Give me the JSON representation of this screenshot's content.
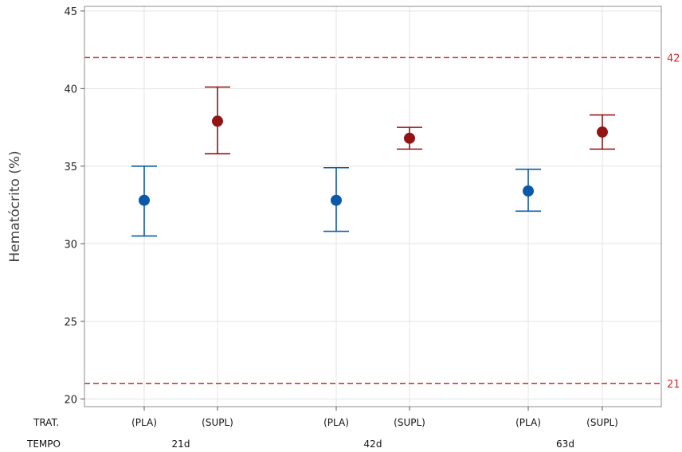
{
  "chart_data": {
    "type": "scatter",
    "subtype": "interval-plot",
    "ylabel": "Hematócrito (%)",
    "ylim": [
      19.5,
      45.3
    ],
    "yticks": [
      20,
      25,
      30,
      35,
      40,
      45
    ],
    "grid": true,
    "row_labels": {
      "trat": "TRAT.",
      "tempo": "TEMPO"
    },
    "groups": [
      {
        "tempo": "21d",
        "items": [
          {
            "trat": "(PLA)",
            "mean": 32.8,
            "lower": 30.5,
            "upper": 35.0,
            "color": "#0a5aa8"
          },
          {
            "trat": "(SUPL)",
            "mean": 37.9,
            "lower": 35.8,
            "upper": 40.1,
            "color": "#931414"
          }
        ]
      },
      {
        "tempo": "42d",
        "items": [
          {
            "trat": "(PLA)",
            "mean": 32.8,
            "lower": 30.8,
            "upper": 34.9,
            "color": "#0a5aa8"
          },
          {
            "trat": "(SUPL)",
            "mean": 36.8,
            "lower": 36.1,
            "upper": 37.5,
            "color": "#931414"
          }
        ]
      },
      {
        "tempo": "63d",
        "items": [
          {
            "trat": "(PLA)",
            "mean": 33.4,
            "lower": 32.1,
            "upper": 34.8,
            "color": "#0a5aa8"
          },
          {
            "trat": "(SUPL)",
            "mean": 37.2,
            "lower": 36.1,
            "upper": 38.3,
            "color": "#931414"
          }
        ]
      }
    ],
    "reference_lines": [
      {
        "value": 42,
        "label": "42",
        "color": "#d62728"
      },
      {
        "value": 21,
        "label": "21",
        "color": "#d62728"
      }
    ]
  }
}
